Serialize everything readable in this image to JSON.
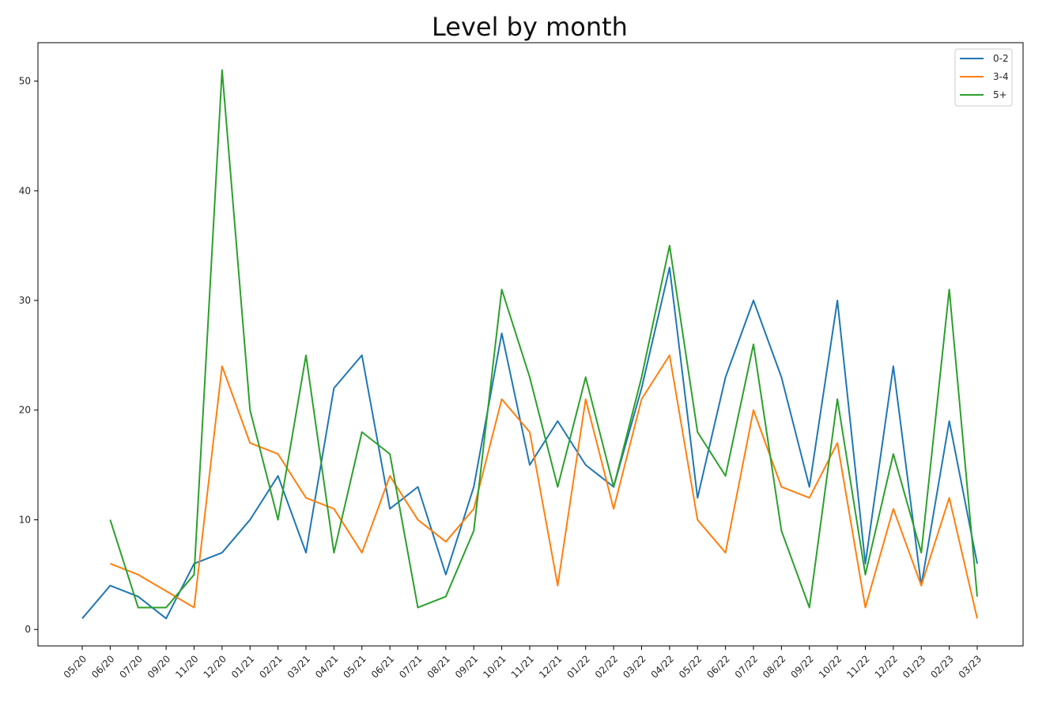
{
  "chart_data": {
    "type": "line",
    "title": "Level by month",
    "xlabel": "",
    "ylabel": "",
    "ylim": [
      -1.5,
      53.5
    ],
    "yticks": [
      0,
      10,
      20,
      30,
      40,
      50
    ],
    "categories": [
      "05/20",
      "06/20",
      "07/20",
      "09/20",
      "11/20",
      "12/20",
      "01/21",
      "02/21",
      "03/21",
      "04/21",
      "05/21",
      "06/21",
      "07/21",
      "08/21",
      "09/21",
      "10/21",
      "11/21",
      "12/21",
      "01/22",
      "02/22",
      "03/22",
      "04/22",
      "05/22",
      "06/22",
      "07/22",
      "08/22",
      "09/22",
      "10/22",
      "11/22",
      "12/22",
      "01/23",
      "02/23",
      "03/23"
    ],
    "legend_position": "top-right",
    "grid": false,
    "series": [
      {
        "name": "0-2",
        "color": "#1f77b4",
        "values": [
          1,
          4,
          3,
          1,
          6,
          7,
          10,
          14,
          7,
          22,
          25,
          11,
          13,
          5,
          13,
          27,
          15,
          19,
          15,
          13,
          22,
          33,
          12,
          23,
          30,
          23,
          13,
          30,
          6,
          24,
          4,
          19,
          6
        ]
      },
      {
        "name": "3-4",
        "color": "#ff7f0e",
        "values": [
          null,
          6,
          5,
          3.5,
          2,
          24,
          17,
          16,
          12,
          11,
          7,
          14,
          10,
          8,
          11,
          21,
          18,
          4,
          21,
          11,
          21,
          25,
          10,
          7,
          20,
          13,
          12,
          17,
          2,
          11,
          4,
          12,
          1
        ]
      },
      {
        "name": "5+",
        "color": "#2ca02c",
        "values": [
          null,
          10,
          2,
          2,
          5,
          51,
          20,
          10,
          25,
          7,
          18,
          16,
          2,
          3,
          9,
          31,
          23,
          13,
          23,
          13,
          23,
          35,
          18,
          14,
          26,
          9,
          2,
          21,
          5,
          16,
          7,
          31,
          3
        ]
      }
    ]
  }
}
